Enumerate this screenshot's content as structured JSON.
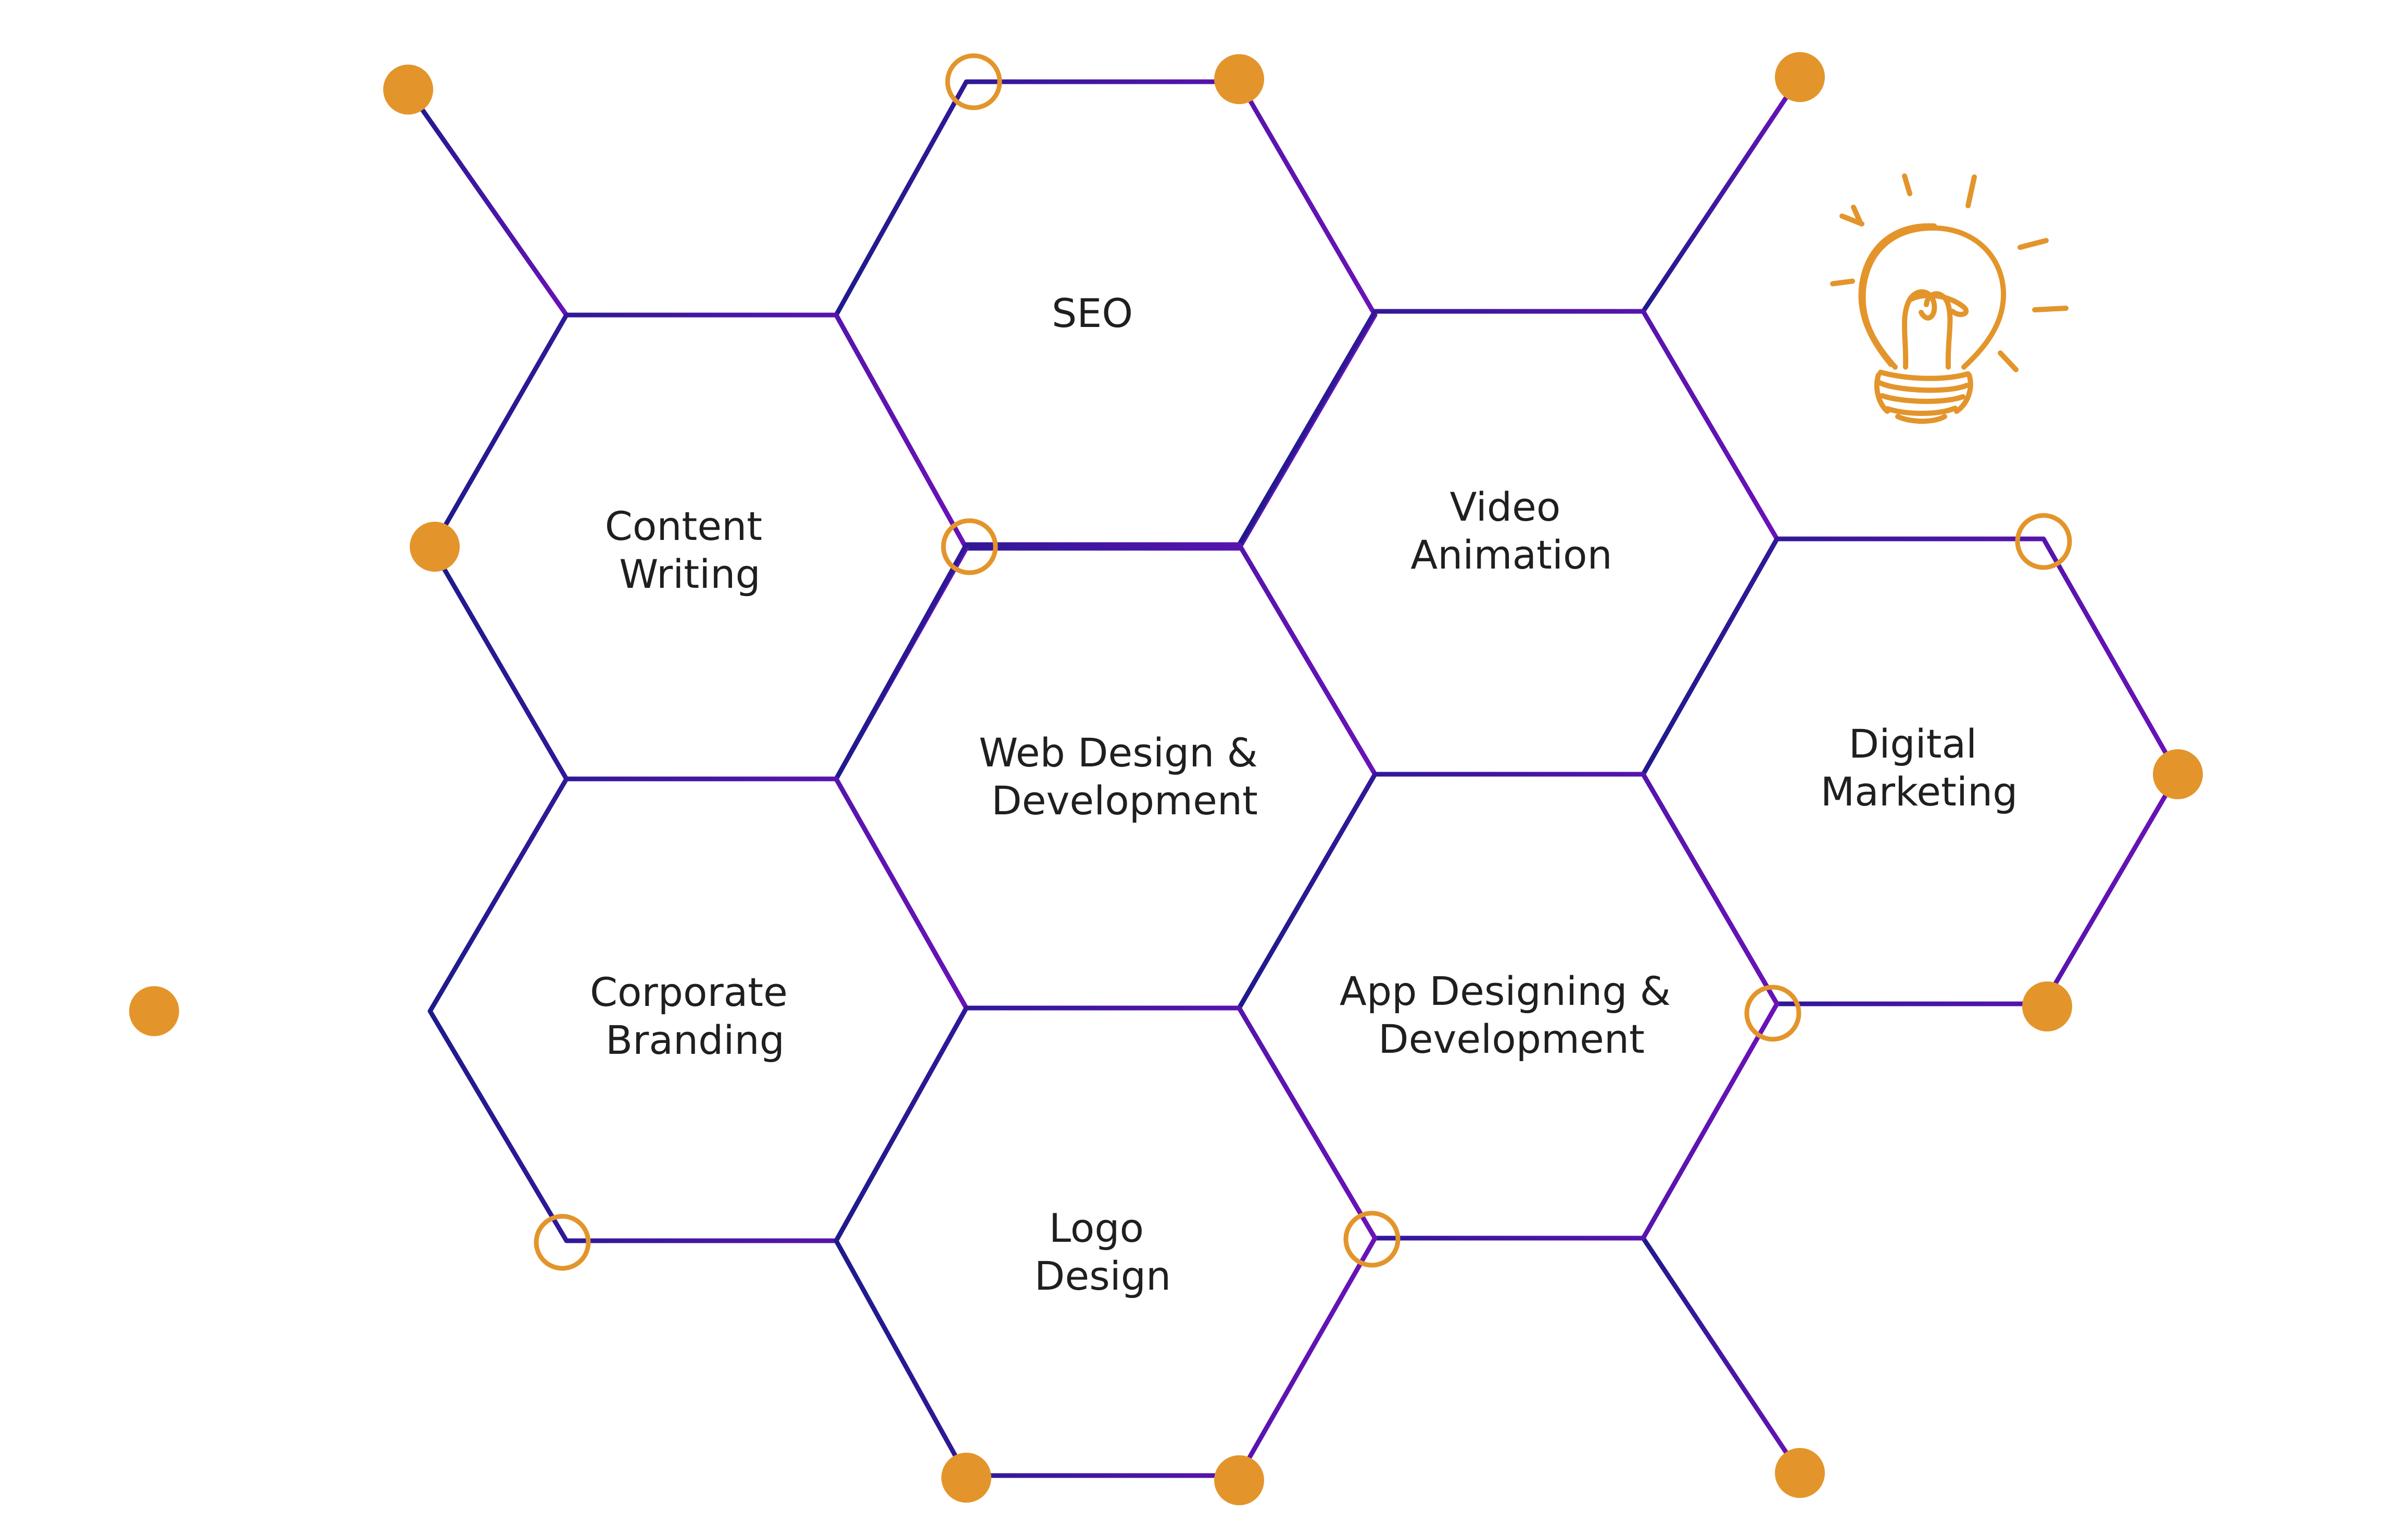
{
  "colors": {
    "line_start": "#1e1a8c",
    "line_end": "#6a12b8",
    "node": "#e3952b",
    "text": "#1f1f1f",
    "bulb": "#e3952b"
  },
  "hexes": [
    {
      "id": "seo",
      "lines": [
        "SEO"
      ]
    },
    {
      "id": "content-writing",
      "lines": [
        "Content",
        "Writing"
      ]
    },
    {
      "id": "video-animation",
      "lines": [
        "Video",
        "Animation"
      ]
    },
    {
      "id": "web-design",
      "lines": [
        "Web Design &",
        "Development"
      ]
    },
    {
      "id": "digital-marketing",
      "lines": [
        "Digital",
        "Marketing"
      ]
    },
    {
      "id": "corporate-branding",
      "lines": [
        "Corporate",
        "Branding"
      ]
    },
    {
      "id": "app-designing",
      "lines": [
        "App Designing &",
        "Development"
      ]
    },
    {
      "id": "logo-design",
      "lines": [
        "Logo",
        "Design"
      ]
    }
  ],
  "decoration": {
    "icon": "lightbulb-icon"
  }
}
